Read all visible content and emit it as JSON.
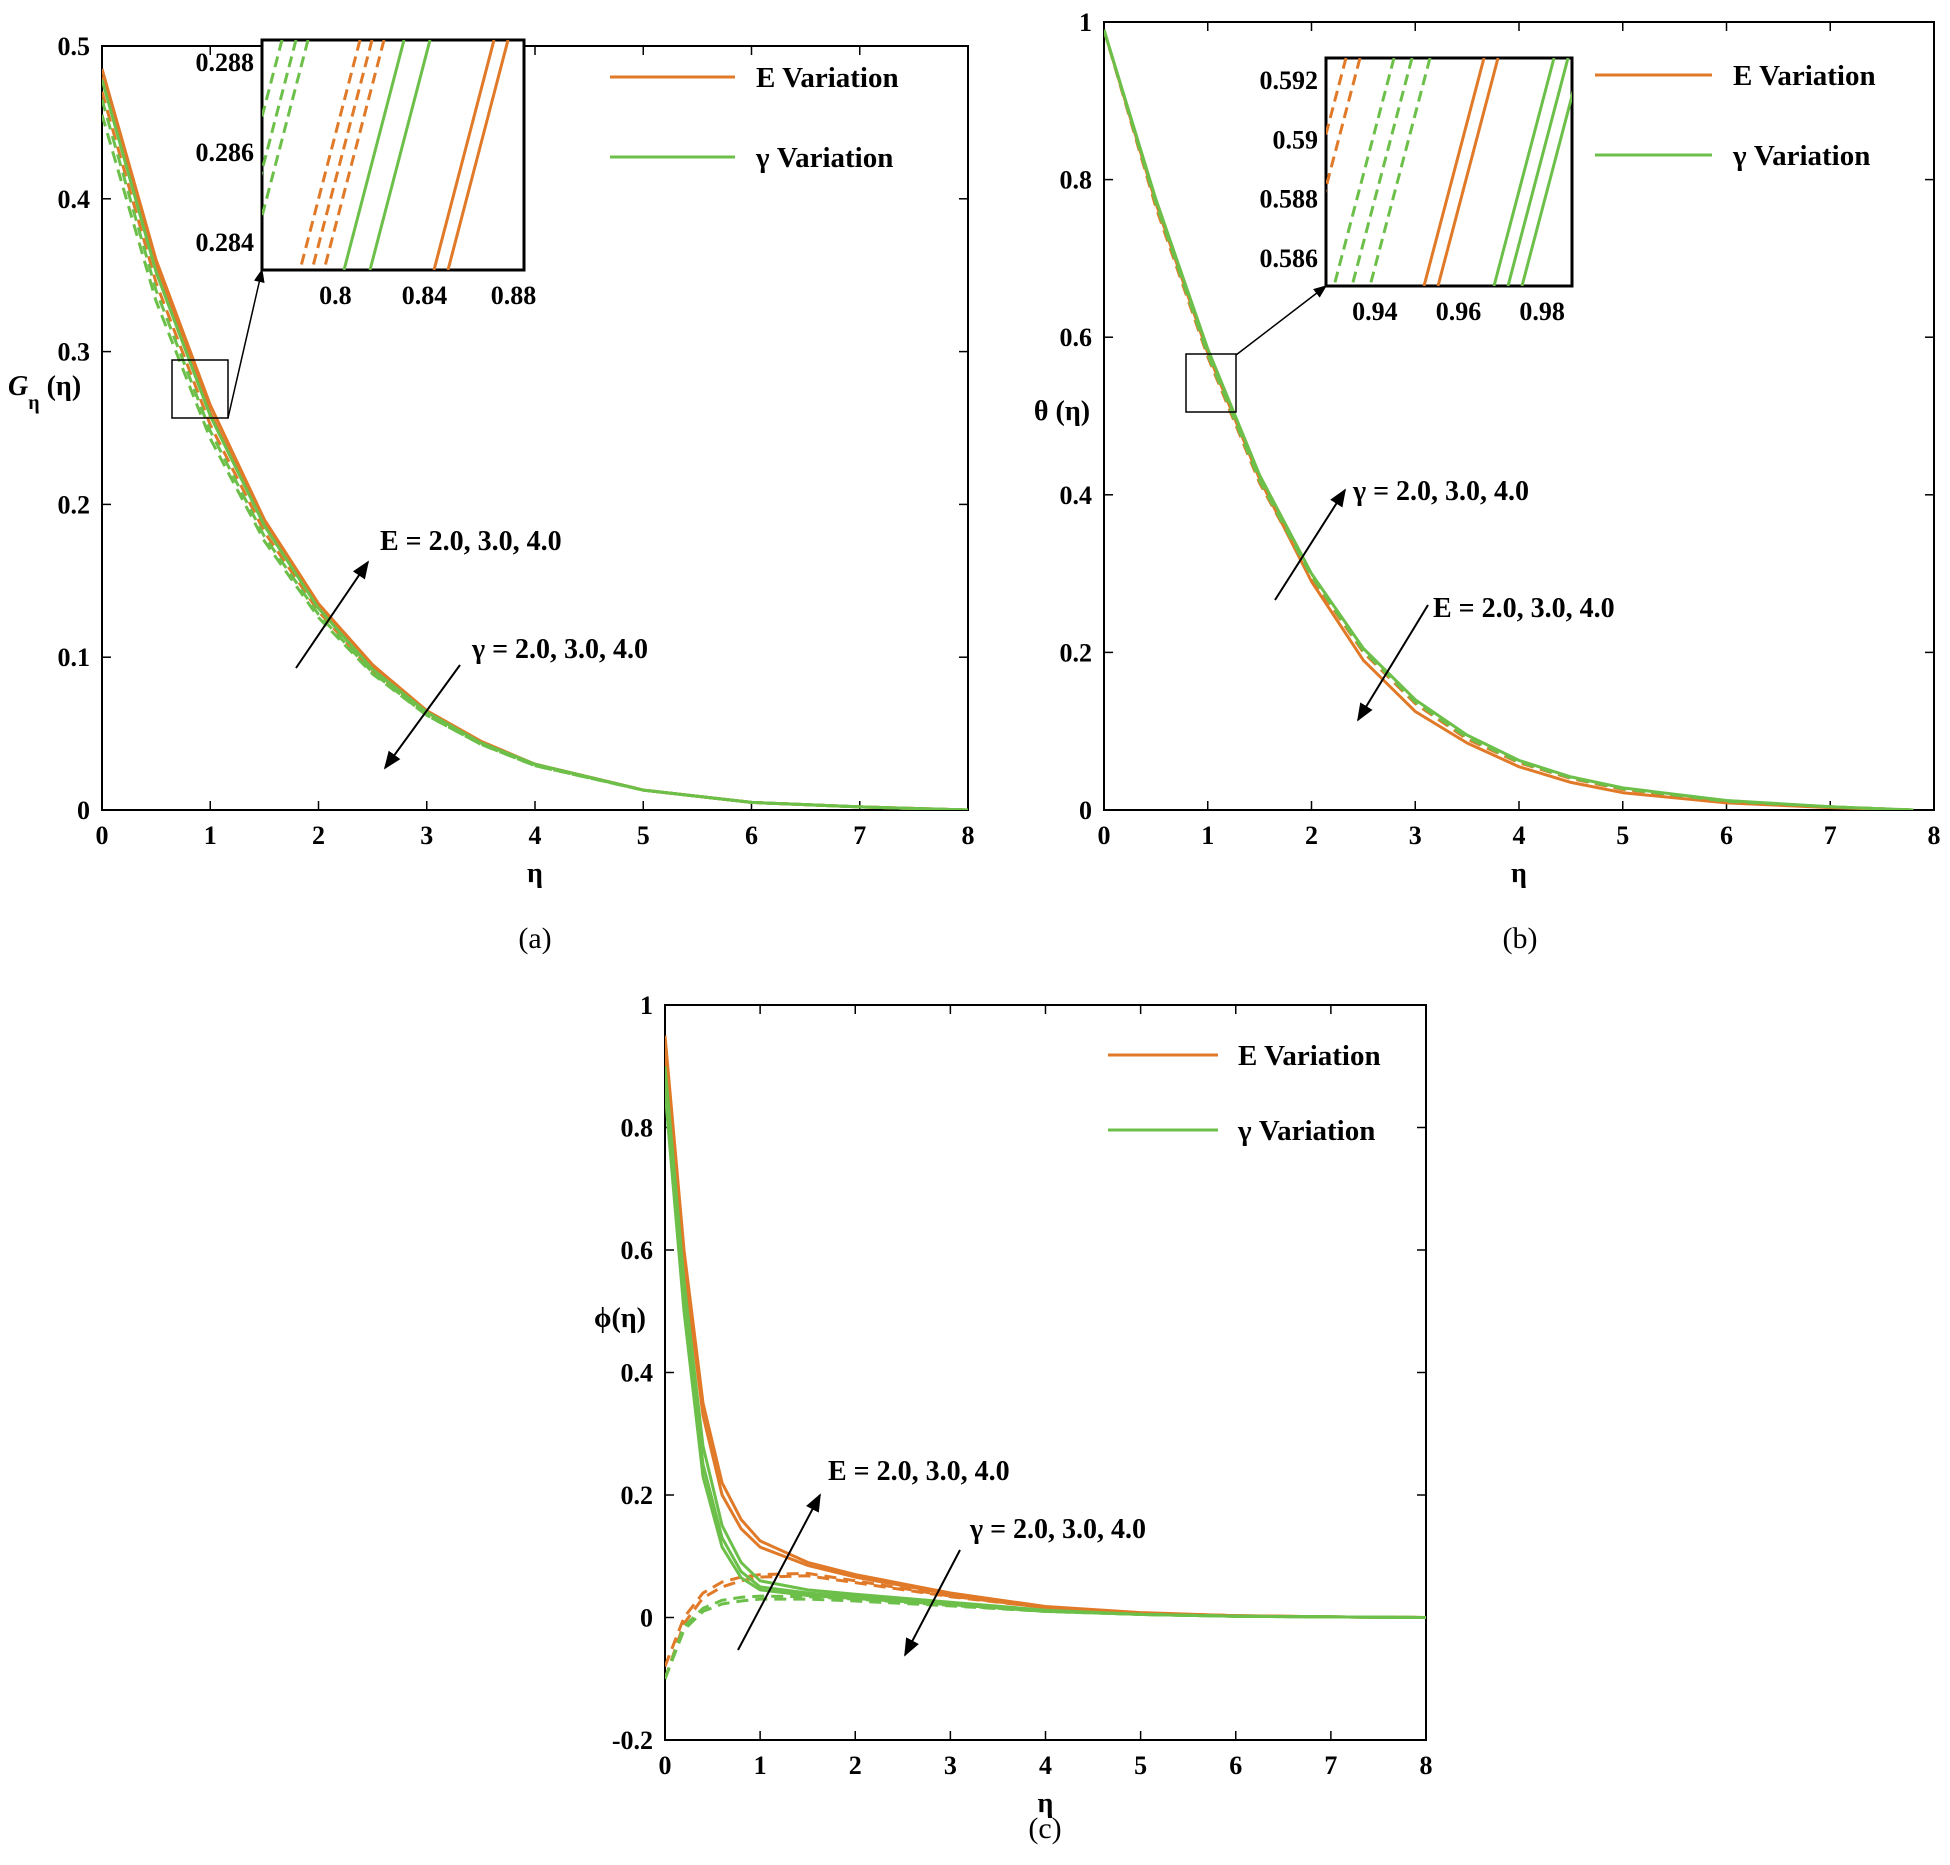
{
  "colors": {
    "E": "#E07A28",
    "gamma": "#6CC04A",
    "axis": "#000000"
  },
  "panels": [
    {
      "id": "a",
      "caption": "(a)",
      "legend": [
        {
          "label": "E Variation",
          "series": "E"
        },
        {
          "label": "γ Variation",
          "series": "gamma"
        }
      ],
      "annotations": [
        {
          "text": "E = 2.0, 3.0, 4.0",
          "dir": "up"
        },
        {
          "text": "γ = 2.0, 3.0, 4.0",
          "dir": "down"
        }
      ],
      "inset": {
        "xticks": [
          "0.8",
          "0.84",
          "0.88"
        ],
        "yticks": [
          "0.288",
          "0.286",
          "0.284"
        ]
      }
    },
    {
      "id": "b",
      "caption": "(b)",
      "legend": [
        {
          "label": "E Variation",
          "series": "E"
        },
        {
          "label": "γ Variation",
          "series": "gamma"
        }
      ],
      "annotations": [
        {
          "text": "γ = 2.0, 3.0, 4.0",
          "dir": "up"
        },
        {
          "text": "E = 2.0, 3.0, 4.0",
          "dir": "down"
        }
      ],
      "inset": {
        "xticks": [
          "0.94",
          "0.96",
          "0.98"
        ],
        "yticks": [
          "0.592",
          "0.59",
          "0.588",
          "0.586"
        ]
      }
    },
    {
      "id": "c",
      "caption": "(c)",
      "legend": [
        {
          "label": "E Variation",
          "series": "E"
        },
        {
          "label": "γ Variation",
          "series": "gamma"
        }
      ],
      "annotations": [
        {
          "text": "E = 2.0, 3.0, 4.0",
          "dir": "up"
        },
        {
          "text": "γ = 2.0, 3.0, 4.0",
          "dir": "down"
        }
      ]
    }
  ],
  "chart_data": [
    {
      "type": "line",
      "panel": "(a)",
      "xlabel": "η",
      "ylabel": "G",
      "ylabel_sub": "η",
      "ylabel_arg": "(η)",
      "xlim": [
        0,
        8
      ],
      "ylim": [
        0,
        0.5
      ],
      "xticks": [
        0,
        1,
        2,
        3,
        4,
        5,
        6,
        7,
        8
      ],
      "yticks": [
        0,
        0.1,
        0.2,
        0.3,
        0.4,
        0.5
      ],
      "series": [
        {
          "name": "E Variation",
          "style": "solid",
          "x": [
            0,
            0.5,
            1,
            1.5,
            2,
            2.5,
            3,
            3.5,
            4,
            5,
            6,
            7,
            8
          ],
          "y": [
            0.485,
            0.36,
            0.265,
            0.19,
            0.135,
            0.095,
            0.065,
            0.045,
            0.03,
            0.013,
            0.005,
            0.002,
            0
          ]
        },
        {
          "name": "E Variation",
          "style": "solid",
          "x": [
            0,
            0.5,
            1,
            1.5,
            2,
            2.5,
            3,
            3.5,
            4,
            5,
            6,
            7,
            8
          ],
          "y": [
            0.48,
            0.355,
            0.26,
            0.187,
            0.133,
            0.093,
            0.064,
            0.044,
            0.03,
            0.013,
            0.005,
            0.002,
            0
          ]
        },
        {
          "name": "E Variation",
          "style": "dashed",
          "x": [
            0,
            0.5,
            1,
            1.5,
            2,
            2.5,
            3,
            3.5,
            4,
            5,
            6,
            7,
            8
          ],
          "y": [
            0.47,
            0.345,
            0.252,
            0.182,
            0.13,
            0.091,
            0.063,
            0.044,
            0.03,
            0.013,
            0.005,
            0.002,
            0
          ]
        },
        {
          "name": "γ Variation",
          "style": "solid",
          "x": [
            0,
            0.5,
            1,
            1.5,
            2,
            2.5,
            3,
            3.5,
            4,
            5,
            6,
            7,
            8
          ],
          "y": [
            0.478,
            0.352,
            0.258,
            0.186,
            0.132,
            0.092,
            0.064,
            0.044,
            0.03,
            0.013,
            0.005,
            0.002,
            0
          ]
        },
        {
          "name": "γ Variation",
          "style": "dashed",
          "x": [
            0,
            0.5,
            1,
            1.5,
            2,
            2.5,
            3,
            3.5,
            4,
            5,
            6,
            7,
            8
          ],
          "y": [
            0.465,
            0.34,
            0.248,
            0.179,
            0.128,
            0.09,
            0.062,
            0.043,
            0.029,
            0.013,
            0.005,
            0.002,
            0
          ]
        },
        {
          "name": "γ Variation",
          "style": "dashed",
          "x": [
            0,
            0.5,
            1,
            1.5,
            2,
            2.5,
            3,
            3.5,
            4,
            5,
            6,
            7,
            8
          ],
          "y": [
            0.455,
            0.333,
            0.243,
            0.176,
            0.126,
            0.089,
            0.062,
            0.043,
            0.029,
            0.013,
            0.005,
            0.002,
            0
          ]
        }
      ]
    },
    {
      "type": "line",
      "panel": "(b)",
      "xlabel": "η",
      "ylabel": "θ (η)",
      "xlim": [
        0,
        8
      ],
      "ylim": [
        0,
        1
      ],
      "xticks": [
        0,
        1,
        2,
        3,
        4,
        5,
        6,
        7,
        8
      ],
      "yticks": [
        0,
        0.2,
        0.4,
        0.6,
        0.8,
        1
      ],
      "series": [
        {
          "name": "E Variation",
          "style": "solid",
          "x": [
            0,
            0.5,
            1,
            1.5,
            2,
            2.5,
            3,
            3.5,
            4,
            4.5,
            5,
            6,
            7,
            7.8
          ],
          "y": [
            0.99,
            0.77,
            0.58,
            0.42,
            0.29,
            0.19,
            0.125,
            0.085,
            0.055,
            0.035,
            0.022,
            0.009,
            0.003,
            0
          ]
        },
        {
          "name": "E Variation",
          "style": "dashed",
          "x": [
            0,
            0.5,
            1,
            1.5,
            2,
            2.5,
            3,
            3.5,
            4,
            4.5,
            5,
            6,
            7,
            7.8
          ],
          "y": [
            0.99,
            0.765,
            0.575,
            0.415,
            0.295,
            0.2,
            0.135,
            0.09,
            0.06,
            0.04,
            0.026,
            0.011,
            0.004,
            0
          ]
        },
        {
          "name": "γ Variation",
          "style": "solid",
          "x": [
            0,
            0.5,
            1,
            1.5,
            2,
            2.5,
            3,
            3.5,
            4,
            4.5,
            5,
            6,
            7,
            7.8
          ],
          "y": [
            0.99,
            0.775,
            0.585,
            0.425,
            0.3,
            0.205,
            0.14,
            0.095,
            0.063,
            0.042,
            0.028,
            0.012,
            0.004,
            0
          ]
        },
        {
          "name": "γ Variation",
          "style": "dashed",
          "x": [
            0,
            0.5,
            1,
            1.5,
            2,
            2.5,
            3,
            3.5,
            4,
            4.5,
            5,
            6,
            7,
            7.8
          ],
          "y": [
            0.99,
            0.77,
            0.578,
            0.418,
            0.297,
            0.202,
            0.137,
            0.092,
            0.061,
            0.041,
            0.027,
            0.011,
            0.004,
            0
          ]
        }
      ]
    },
    {
      "type": "line",
      "panel": "(c)",
      "xlabel": "η",
      "ylabel": "ϕ(η)",
      "xlim": [
        0,
        8
      ],
      "ylim": [
        -0.2,
        1
      ],
      "xticks": [
        0,
        1,
        2,
        3,
        4,
        5,
        6,
        7,
        8
      ],
      "yticks": [
        -0.2,
        0,
        0.2,
        0.4,
        0.6,
        0.8,
        1
      ],
      "series": [
        {
          "name": "E Variation",
          "style": "solid",
          "x": [
            0,
            0.2,
            0.4,
            0.6,
            0.8,
            1,
            1.5,
            2,
            3,
            4,
            5,
            6,
            7,
            8
          ],
          "y": [
            0.95,
            0.6,
            0.35,
            0.22,
            0.16,
            0.125,
            0.09,
            0.07,
            0.04,
            0.018,
            0.008,
            0.003,
            0.001,
            0
          ]
        },
        {
          "name": "E Variation",
          "style": "solid",
          "x": [
            0,
            0.2,
            0.4,
            0.6,
            0.8,
            1,
            1.5,
            2,
            3,
            4,
            5,
            6,
            7,
            8
          ],
          "y": [
            0.93,
            0.58,
            0.33,
            0.2,
            0.145,
            0.115,
            0.085,
            0.066,
            0.038,
            0.017,
            0.007,
            0.003,
            0.001,
            0
          ]
        },
        {
          "name": "E Variation",
          "style": "dashed",
          "x": [
            0,
            0.2,
            0.4,
            0.6,
            0.8,
            1,
            1.5,
            2,
            3,
            4,
            5,
            6,
            7,
            8
          ],
          "y": [
            -0.08,
            0.0,
            0.04,
            0.058,
            0.066,
            0.07,
            0.072,
            0.06,
            0.035,
            0.016,
            0.007,
            0.003,
            0.001,
            0
          ]
        },
        {
          "name": "E Variation",
          "style": "dashed",
          "x": [
            0,
            0.2,
            0.4,
            0.6,
            0.8,
            1,
            1.5,
            2,
            3,
            4,
            5,
            6,
            7,
            8
          ],
          "y": [
            -0.1,
            -0.01,
            0.032,
            0.05,
            0.06,
            0.066,
            0.068,
            0.057,
            0.034,
            0.016,
            0.007,
            0.003,
            0.001,
            0
          ]
        },
        {
          "name": "γ Variation",
          "style": "solid",
          "x": [
            0,
            0.2,
            0.4,
            0.6,
            0.8,
            1,
            1.5,
            2,
            3,
            4,
            5,
            6,
            7,
            8
          ],
          "y": [
            0.9,
            0.55,
            0.28,
            0.15,
            0.09,
            0.06,
            0.045,
            0.038,
            0.025,
            0.012,
            0.005,
            0.002,
            0.001,
            0
          ]
        },
        {
          "name": "γ Variation",
          "style": "solid",
          "x": [
            0,
            0.2,
            0.4,
            0.6,
            0.8,
            1,
            1.5,
            2,
            3,
            4,
            5,
            6,
            7,
            8
          ],
          "y": [
            0.88,
            0.52,
            0.25,
            0.13,
            0.075,
            0.05,
            0.04,
            0.034,
            0.023,
            0.011,
            0.005,
            0.002,
            0.001,
            0
          ]
        },
        {
          "name": "γ Variation",
          "style": "solid",
          "x": [
            0,
            0.2,
            0.4,
            0.6,
            0.8,
            1,
            1.5,
            2,
            3,
            4,
            5,
            6,
            7,
            8
          ],
          "y": [
            0.86,
            0.5,
            0.23,
            0.115,
            0.065,
            0.045,
            0.036,
            0.031,
            0.021,
            0.01,
            0.005,
            0.002,
            0.001,
            0
          ]
        },
        {
          "name": "γ Variation",
          "style": "dashed",
          "x": [
            0,
            0.2,
            0.4,
            0.6,
            0.8,
            1,
            1.5,
            2,
            3,
            4,
            5,
            6,
            7,
            8
          ],
          "y": [
            -0.1,
            -0.015,
            0.015,
            0.028,
            0.033,
            0.035,
            0.034,
            0.03,
            0.02,
            0.01,
            0.005,
            0.002,
            0.001,
            0
          ]
        },
        {
          "name": "γ Variation",
          "style": "dashed",
          "x": [
            0,
            0.2,
            0.4,
            0.6,
            0.8,
            1,
            1.5,
            2,
            3,
            4,
            5,
            6,
            7,
            8
          ],
          "y": [
            -0.1,
            -0.02,
            0.01,
            0.022,
            0.027,
            0.03,
            0.03,
            0.027,
            0.019,
            0.01,
            0.005,
            0.002,
            0.001,
            0
          ]
        }
      ]
    }
  ]
}
